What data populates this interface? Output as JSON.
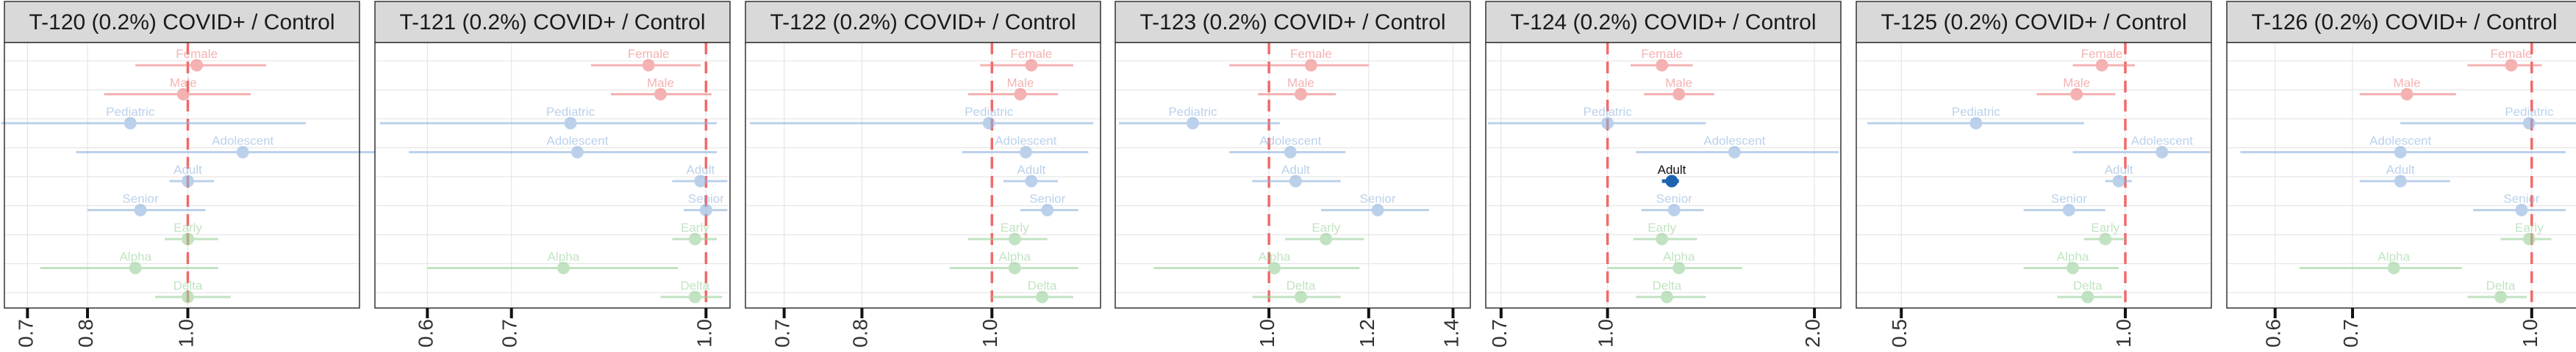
{
  "figure": {
    "rows": [
      "Female",
      "Male",
      "Pediatric",
      "Adolescent",
      "Adult",
      "Senior",
      "Early",
      "Alpha",
      "Delta"
    ],
    "colors": {
      "sex": "#f08080",
      "age": "#8fb3df",
      "variant": "#99d199",
      "highlight": "#1f63b0",
      "ref_line": "#f06a6a",
      "strip_bg": "#d9d9d9",
      "grid": "#e6e6e6"
    }
  },
  "chart_data": [
    {
      "type": "forest",
      "title": "T-120 (0.2%) COVID+ / Control",
      "xlim": [
        0.665,
        1.465
      ],
      "xticks": [
        0.7,
        0.8,
        1.0
      ],
      "ref_line": 1.0,
      "points": [
        {
          "label": "Female",
          "group": "sex",
          "est": 1.02,
          "lo": 0.89,
          "hi": 1.19
        },
        {
          "label": "Male",
          "group": "sex",
          "est": 0.99,
          "lo": 0.83,
          "hi": 1.15
        },
        {
          "label": "Pediatric",
          "group": "age",
          "est": 0.88,
          "lo": 0.66,
          "hi": 1.3
        },
        {
          "label": "Adolescent",
          "group": "age",
          "est": 1.13,
          "lo": 0.78,
          "hi": 1.56
        },
        {
          "label": "Adult",
          "group": "age",
          "est": 1.0,
          "lo": 0.96,
          "hi": 1.06
        },
        {
          "label": "Senior",
          "group": "age",
          "est": 0.9,
          "lo": 0.8,
          "hi": 1.04
        },
        {
          "label": "Early",
          "group": "variant",
          "est": 1.0,
          "lo": 0.95,
          "hi": 1.07
        },
        {
          "label": "Alpha",
          "group": "variant",
          "est": 0.89,
          "lo": 0.72,
          "hi": 1.07
        },
        {
          "label": "Delta",
          "group": "variant",
          "est": 1.0,
          "lo": 0.93,
          "hi": 1.1
        }
      ]
    },
    {
      "type": "forest",
      "title": "T-121 (0.2%) COVID+ / Control",
      "xlim": [
        0.545,
        1.045
      ],
      "xticks": [
        0.6,
        0.7,
        1.0
      ],
      "ref_line": 1.0,
      "points": [
        {
          "label": "Female",
          "group": "sex",
          "est": 0.9,
          "lo": 0.81,
          "hi": 0.99
        },
        {
          "label": "Male",
          "group": "sex",
          "est": 0.92,
          "lo": 0.84,
          "hi": 1.01
        },
        {
          "label": "Pediatric",
          "group": "age",
          "est": 0.78,
          "lo": 0.55,
          "hi": 1.02
        },
        {
          "label": "Adolescent",
          "group": "age",
          "est": 0.79,
          "lo": 0.58,
          "hi": 1.02
        },
        {
          "label": "Adult",
          "group": "age",
          "est": 0.99,
          "lo": 0.94,
          "hi": 1.04
        },
        {
          "label": "Senior",
          "group": "age",
          "est": 1.0,
          "lo": 0.96,
          "hi": 1.04
        },
        {
          "label": "Early",
          "group": "variant",
          "est": 0.98,
          "lo": 0.94,
          "hi": 1.02
        },
        {
          "label": "Alpha",
          "group": "variant",
          "est": 0.77,
          "lo": 0.6,
          "hi": 0.95
        },
        {
          "label": "Delta",
          "group": "variant",
          "est": 0.98,
          "lo": 0.92,
          "hi": 1.03
        }
      ]
    },
    {
      "type": "forest",
      "title": "T-122 (0.2%) COVID+ / Control",
      "xlim": [
        0.655,
        1.205
      ],
      "xticks": [
        0.7,
        0.8,
        1.0
      ],
      "ref_line": 1.0,
      "points": [
        {
          "label": "Female",
          "group": "sex",
          "est": 1.07,
          "lo": 0.98,
          "hi": 1.15
        },
        {
          "label": "Male",
          "group": "sex",
          "est": 1.05,
          "lo": 0.96,
          "hi": 1.12
        },
        {
          "label": "Pediatric",
          "group": "age",
          "est": 0.995,
          "lo": 0.66,
          "hi": 1.19
        },
        {
          "label": "Adolescent",
          "group": "age",
          "est": 1.06,
          "lo": 0.95,
          "hi": 1.18
        },
        {
          "label": "Adult",
          "group": "age",
          "est": 1.07,
          "lo": 1.02,
          "hi": 1.12
        },
        {
          "label": "Senior",
          "group": "age",
          "est": 1.1,
          "lo": 1.05,
          "hi": 1.16
        },
        {
          "label": "Early",
          "group": "variant",
          "est": 1.04,
          "lo": 0.96,
          "hi": 1.1
        },
        {
          "label": "Alpha",
          "group": "variant",
          "est": 1.04,
          "lo": 0.93,
          "hi": 1.16
        },
        {
          "label": "Delta",
          "group": "variant",
          "est": 1.09,
          "lo": 1.0,
          "hi": 1.15
        }
      ]
    },
    {
      "type": "forest",
      "title": "T-123 (0.2%) COVID+ / Control",
      "xlim": [
        0.755,
        1.445
      ],
      "xticks": [
        1.0,
        1.2,
        1.4
      ],
      "ref_line": 1.0,
      "points": [
        {
          "label": "Female",
          "group": "sex",
          "est": 1.08,
          "lo": 0.93,
          "hi": 1.2
        },
        {
          "label": "Male",
          "group": "sex",
          "est": 1.06,
          "lo": 0.98,
          "hi": 1.13
        },
        {
          "label": "Pediatric",
          "group": "age",
          "est": 0.87,
          "lo": 0.76,
          "hi": 1.02
        },
        {
          "label": "Adolescent",
          "group": "age",
          "est": 1.04,
          "lo": 0.93,
          "hi": 1.15
        },
        {
          "label": "Adult",
          "group": "age",
          "est": 1.05,
          "lo": 0.97,
          "hi": 1.14
        },
        {
          "label": "Senior",
          "group": "age",
          "est": 1.22,
          "lo": 1.1,
          "hi": 1.34
        },
        {
          "label": "Early",
          "group": "variant",
          "est": 1.11,
          "lo": 1.03,
          "hi": 1.19
        },
        {
          "label": "Alpha",
          "group": "variant",
          "est": 1.01,
          "lo": 0.81,
          "hi": 1.18
        },
        {
          "label": "Delta",
          "group": "variant",
          "est": 1.06,
          "lo": 0.97,
          "hi": 1.14
        }
      ]
    },
    {
      "type": "forest",
      "title": "T-124 (0.2%) COVID+ / Control",
      "xlim": [
        0.665,
        2.185
      ],
      "xticks": [
        0.7,
        1.0,
        2.0
      ],
      "ref_line": 1.0,
      "points": [
        {
          "label": "Female",
          "group": "sex",
          "est": 1.2,
          "lo": 1.08,
          "hi": 1.33
        },
        {
          "label": "Male",
          "group": "sex",
          "est": 1.27,
          "lo": 1.13,
          "hi": 1.43
        },
        {
          "label": "Pediatric",
          "group": "age",
          "est": 1.0,
          "lo": 0.67,
          "hi": 1.39
        },
        {
          "label": "Adolescent",
          "group": "age",
          "est": 1.53,
          "lo": 1.1,
          "hi": 2.17
        },
        {
          "label": "Adult",
          "group": "age",
          "est": 1.24,
          "lo": 1.2,
          "hi": 1.27,
          "highlight": true
        },
        {
          "label": "Senior",
          "group": "age",
          "est": 1.25,
          "lo": 1.12,
          "hi": 1.38
        },
        {
          "label": "Early",
          "group": "variant",
          "est": 1.2,
          "lo": 1.09,
          "hi": 1.35
        },
        {
          "label": "Alpha",
          "group": "variant",
          "est": 1.27,
          "lo": 1.0,
          "hi": 1.57
        },
        {
          "label": "Delta",
          "group": "variant",
          "est": 1.22,
          "lo": 1.1,
          "hi": 1.39
        }
      ]
    },
    {
      "type": "forest",
      "title": "T-125 (0.2%) COVID+ / Control",
      "xlim": [
        0.435,
        1.305
      ],
      "xticks": [
        0.5,
        1.0
      ],
      "ref_line": 1.0,
      "points": [
        {
          "label": "Female",
          "group": "sex",
          "est": 0.93,
          "lo": 0.85,
          "hi": 1.03
        },
        {
          "label": "Male",
          "group": "sex",
          "est": 0.86,
          "lo": 0.76,
          "hi": 0.97
        },
        {
          "label": "Pediatric",
          "group": "age",
          "est": 0.63,
          "lo": 0.45,
          "hi": 0.88
        },
        {
          "label": "Adolescent",
          "group": "age",
          "est": 1.12,
          "lo": 0.85,
          "hi": 1.3
        },
        {
          "label": "Adult",
          "group": "age",
          "est": 0.98,
          "lo": 0.94,
          "hi": 1.02
        },
        {
          "label": "Senior",
          "group": "age",
          "est": 0.84,
          "lo": 0.73,
          "hi": 0.94
        },
        {
          "label": "Early",
          "group": "variant",
          "est": 0.94,
          "lo": 0.88,
          "hi": 1.0
        },
        {
          "label": "Alpha",
          "group": "variant",
          "est": 0.85,
          "lo": 0.73,
          "hi": 0.98
        },
        {
          "label": "Delta",
          "group": "variant",
          "est": 0.89,
          "lo": 0.81,
          "hi": 0.99
        }
      ]
    },
    {
      "type": "forest",
      "title": "T-126 (0.2%) COVID+ / Control",
      "xlim": [
        0.545,
        1.105
      ],
      "xticks": [
        0.6,
        0.7,
        1.0
      ],
      "ref_line": 1.0,
      "points": [
        {
          "label": "Female",
          "group": "sex",
          "est": 0.96,
          "lo": 0.88,
          "hi": 1.02
        },
        {
          "label": "Male",
          "group": "sex",
          "est": 0.78,
          "lo": 0.71,
          "hi": 0.86
        },
        {
          "label": "Pediatric",
          "group": "age",
          "est": 0.995,
          "lo": 0.77,
          "hi": 1.1
        },
        {
          "label": "Adolescent",
          "group": "age",
          "est": 0.77,
          "lo": 0.56,
          "hi": 1.07
        },
        {
          "label": "Adult",
          "group": "age",
          "est": 0.77,
          "lo": 0.71,
          "hi": 0.85
        },
        {
          "label": "Senior",
          "group": "age",
          "est": 0.98,
          "lo": 0.89,
          "hi": 1.07
        },
        {
          "label": "Early",
          "group": "variant",
          "est": 0.995,
          "lo": 0.94,
          "hi": 1.04
        },
        {
          "label": "Alpha",
          "group": "variant",
          "est": 0.76,
          "lo": 0.63,
          "hi": 0.87
        },
        {
          "label": "Delta",
          "group": "variant",
          "est": 0.94,
          "lo": 0.88,
          "hi": 0.99
        }
      ]
    }
  ]
}
